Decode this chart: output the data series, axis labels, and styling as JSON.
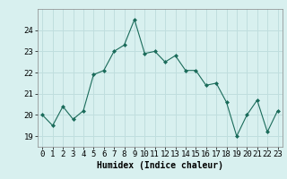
{
  "x": [
    0,
    1,
    2,
    3,
    4,
    5,
    6,
    7,
    8,
    9,
    10,
    11,
    12,
    13,
    14,
    15,
    16,
    17,
    18,
    19,
    20,
    21,
    22,
    23
  ],
  "y": [
    20.0,
    19.5,
    20.4,
    19.8,
    20.2,
    21.9,
    22.1,
    23.0,
    23.3,
    24.5,
    22.9,
    23.0,
    22.5,
    22.8,
    22.1,
    22.1,
    21.4,
    21.5,
    20.6,
    19.0,
    20.0,
    20.7,
    19.2,
    20.2
  ],
  "line_color": "#1a6b5a",
  "marker": "D",
  "marker_size": 2.0,
  "bg_color": "#d8f0ef",
  "grid_color": "#c0dede",
  "grid_color_minor": "#e0ecec",
  "xlabel": "Humidex (Indice chaleur)",
  "xlabel_fontsize": 7,
  "tick_fontsize": 6.5,
  "ylim": [
    18.5,
    25.0
  ],
  "xlim": [
    -0.5,
    23.5
  ],
  "yticks": [
    19,
    20,
    21,
    22,
    23,
    24
  ],
  "xticks": [
    0,
    1,
    2,
    3,
    4,
    5,
    6,
    7,
    8,
    9,
    10,
    11,
    12,
    13,
    14,
    15,
    16,
    17,
    18,
    19,
    20,
    21,
    22,
    23
  ]
}
